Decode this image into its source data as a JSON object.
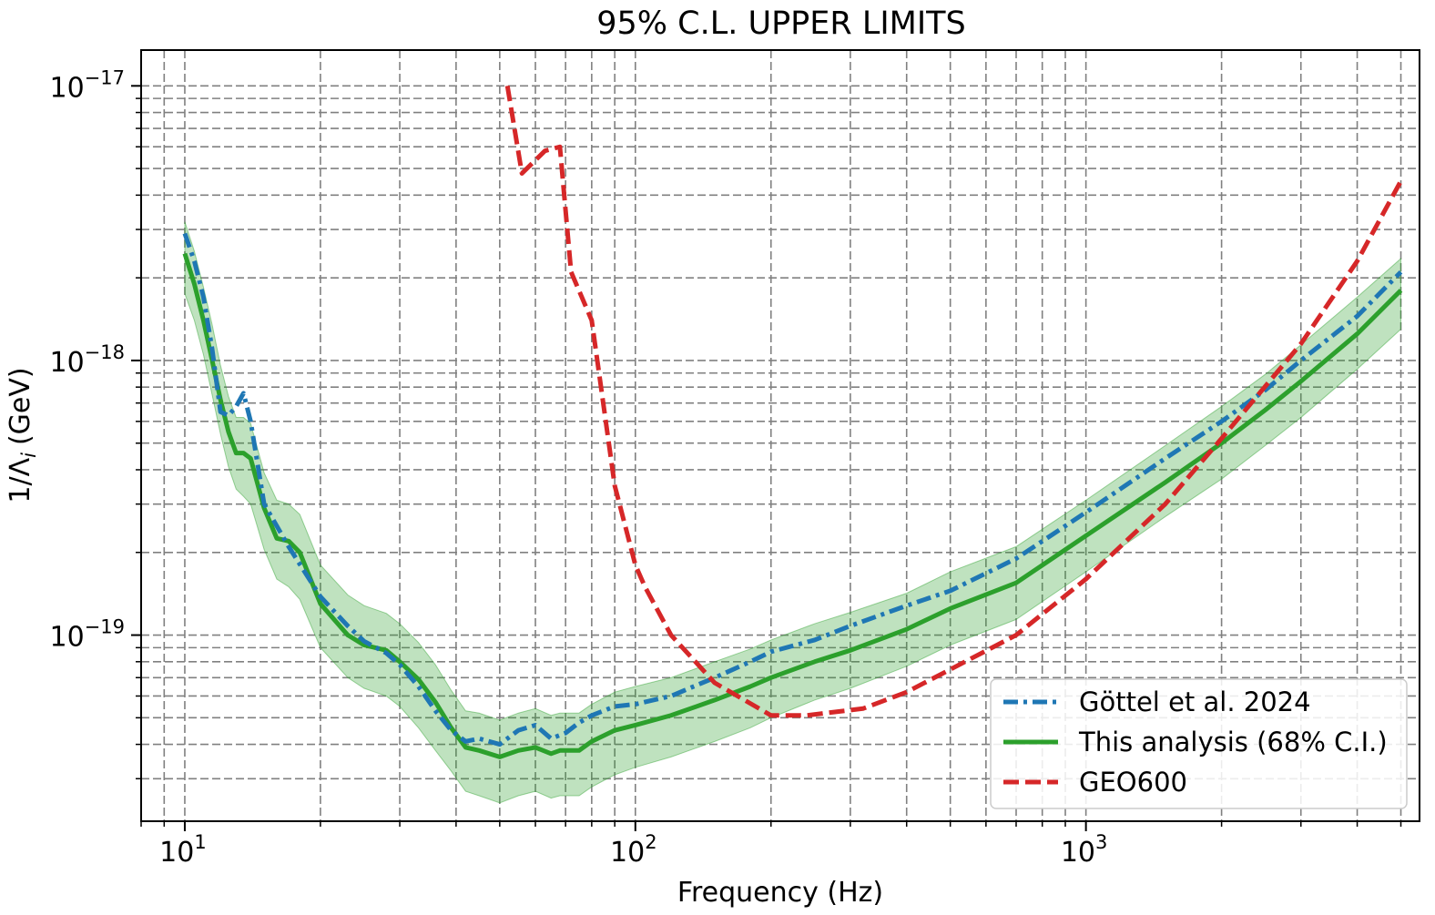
{
  "chart_data": {
    "type": "line",
    "title": "95% C.L. UPPER LIMITS",
    "xlabel": "Frequency (Hz)",
    "ylabel": "1/Λ",
    "ylabel_sub": "i",
    "ylabel_unit": "(GeV)",
    "x_scale": "log",
    "y_scale": "log",
    "xlim": [
      8,
      5500
    ],
    "ylim": [
      2.1e-20,
      1.35e-17
    ],
    "grid": "major and minor, dashed",
    "legend_position": "lower right",
    "x_ticks": [
      {
        "base": "10",
        "exp": "1",
        "value": 10
      },
      {
        "base": "10",
        "exp": "2",
        "value": 100
      },
      {
        "base": "10",
        "exp": "3",
        "value": 1000
      }
    ],
    "y_ticks": [
      {
        "base": "10",
        "exp": "−19",
        "value": 1e-19
      },
      {
        "base": "10",
        "exp": "−18",
        "value": 1e-18
      },
      {
        "base": "10",
        "exp": "−17",
        "value": 1e-17
      }
    ],
    "series": [
      {
        "name": "Göttel et al. 2024",
        "color": "#1f77b4",
        "style": "dashdot",
        "x": [
          10,
          10.5,
          11,
          11.5,
          12,
          12.5,
          13,
          13.5,
          14,
          15,
          17,
          20,
          23,
          25,
          28,
          30,
          33,
          36,
          39,
          42,
          45,
          50,
          55,
          60,
          65,
          70,
          75,
          80,
          90,
          100,
          120,
          150,
          180,
          200,
          250,
          300,
          400,
          500,
          700,
          1000,
          1500,
          2000,
          2500,
          3000,
          4000,
          5000
        ],
        "y": [
          2.9e-18,
          2.3e-18,
          1.7e-18,
          1.1e-18,
          6.5e-19,
          6.3e-19,
          6.8e-19,
          7.6e-19,
          6e-19,
          3e-19,
          2.1e-19,
          1.38e-19,
          1.08e-19,
          9.5e-20,
          8.6e-20,
          7.8e-20,
          6.5e-20,
          5.3e-20,
          4.5e-20,
          4.1e-20,
          4.2e-20,
          4e-20,
          4.5e-20,
          4.7e-20,
          4.2e-20,
          4.4e-20,
          4.8e-20,
          5.1e-20,
          5.5e-20,
          5.6e-20,
          6e-20,
          7e-20,
          8e-20,
          8.7e-20,
          9.6e-20,
          1.08e-19,
          1.28e-19,
          1.45e-19,
          1.9e-19,
          2.8e-19,
          4.4e-19,
          6e-19,
          7.8e-19,
          1e-18,
          1.45e-18,
          2.1e-18
        ]
      },
      {
        "name": "This analysis (68% C.I.)",
        "color": "#2ca02c",
        "style": "solid",
        "x": [
          10,
          10.5,
          11,
          11.5,
          12,
          12.5,
          13,
          13.5,
          14,
          15,
          16,
          17,
          18,
          20,
          23,
          25,
          28,
          30,
          33,
          36,
          39,
          42,
          45,
          50,
          55,
          60,
          65,
          68,
          72,
          75,
          80,
          90,
          100,
          120,
          150,
          180,
          200,
          250,
          300,
          400,
          500,
          700,
          1000,
          1500,
          2000,
          2500,
          3000,
          4000,
          5000
        ],
        "y": [
          2.45e-18,
          1.9e-18,
          1.4e-18,
          1e-18,
          7.2e-19,
          5.5e-19,
          4.6e-19,
          4.6e-19,
          4.4e-19,
          2.9e-19,
          2.25e-19,
          2.2e-19,
          2e-19,
          1.3e-19,
          1e-19,
          9.2e-20,
          8.8e-20,
          8e-20,
          6.9e-20,
          5.7e-20,
          4.6e-20,
          3.9e-20,
          3.8e-20,
          3.6e-20,
          3.8e-20,
          3.9e-20,
          3.7e-20,
          3.8e-20,
          3.8e-20,
          3.8e-20,
          4.1e-20,
          4.5e-20,
          4.7e-20,
          5.1e-20,
          5.8e-20,
          6.5e-20,
          7e-20,
          8e-20,
          8.8e-20,
          1.05e-19,
          1.25e-19,
          1.55e-19,
          2.3e-19,
          3.6e-19,
          5e-19,
          6.6e-19,
          8.4e-19,
          1.25e-18,
          1.8e-18
        ],
        "band_lower": [
          1.75e-18,
          1.4e-18,
          1.05e-18,
          7.5e-19,
          5.4e-19,
          4.1e-19,
          3.4e-19,
          3.2e-19,
          3e-19,
          2.05e-19,
          1.6e-19,
          1.5e-19,
          1.35e-19,
          9e-20,
          7e-20,
          6.4e-20,
          6e-20,
          5.5e-20,
          4.6e-20,
          3.8e-20,
          3.2e-20,
          2.7e-20,
          2.6e-20,
          2.45e-20,
          2.6e-20,
          2.7e-20,
          2.55e-20,
          2.6e-20,
          2.6e-20,
          2.6e-20,
          2.8e-20,
          3.1e-20,
          3.3e-20,
          3.6e-20,
          4.1e-20,
          4.6e-20,
          5e-20,
          5.8e-20,
          6.4e-20,
          7.7e-20,
          9.2e-20,
          1.14e-19,
          1.7e-19,
          2.7e-19,
          3.7e-19,
          4.9e-19,
          6.2e-19,
          9.3e-19,
          1.3e-18
        ],
        "band_upper": [
          3.2e-18,
          2.5e-18,
          1.85e-18,
          1.35e-18,
          9.6e-19,
          7.4e-19,
          6.2e-19,
          6.2e-19,
          5.9e-19,
          3.9e-19,
          3.1e-19,
          3e-19,
          2.75e-19,
          1.8e-19,
          1.4e-19,
          1.28e-19,
          1.2e-19,
          1.1e-19,
          9.4e-20,
          7.8e-20,
          6.3e-20,
          5.3e-20,
          5.2e-20,
          4.9e-20,
          5.2e-20,
          5.4e-20,
          5.1e-20,
          5.2e-20,
          5.2e-20,
          5.2e-20,
          5.6e-20,
          6.2e-20,
          6.5e-20,
          7e-20,
          8e-20,
          8.9e-20,
          9.6e-20,
          1.1e-19,
          1.21e-19,
          1.42e-19,
          1.7e-19,
          2.1e-19,
          3.1e-19,
          4.9e-19,
          6.8e-19,
          8.9e-19,
          1.14e-18,
          1.7e-18,
          2.35e-18
        ]
      },
      {
        "name": "GEO600",
        "color": "#d62728",
        "style": "dashed",
        "x": [
          52,
          56,
          63,
          68,
          72,
          80,
          90,
          100,
          105,
          120,
          150,
          200,
          240,
          320,
          400,
          500,
          700,
          1000,
          1500,
          2000,
          3000,
          4000,
          5000
        ],
        "y": [
          1e-17,
          4.8e-18,
          5.8e-18,
          6e-18,
          2.1e-18,
          1.4e-18,
          3.5e-19,
          1.8e-19,
          1.5e-19,
          1e-19,
          6.7e-20,
          5.1e-20,
          5.1e-20,
          5.4e-20,
          6.2e-20,
          7.5e-20,
          1e-19,
          1.6e-19,
          3e-19,
          5.2e-19,
          1.15e-18,
          2.3e-18,
          4.5e-18
        ]
      }
    ]
  }
}
